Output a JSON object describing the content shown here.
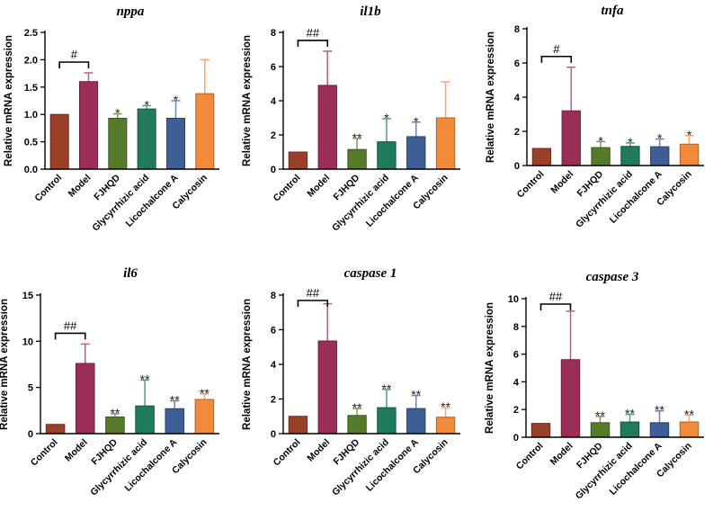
{
  "colors": {
    "Control": "#9a3f28",
    "Model": "#9b2d59",
    "FJHQD": "#557a2a",
    "Glycyrrhizic acid": "#1f7a5e",
    "Licochalcone A": "#3e5f96",
    "Calycosin": "#f28a3c"
  },
  "chart_data": [
    {
      "type": "bar",
      "title": "nppa",
      "ylabel": "Relative mRNA expression",
      "ylim": [
        0,
        2.5
      ],
      "yticks": [
        "0.0",
        "0.5",
        "1.0",
        "1.5",
        "2.0",
        "2.5"
      ],
      "categories": [
        "Control",
        "Model",
        "FJHQD",
        "Glycyrrhizic acid",
        "Licochalcone A",
        "Calycosin"
      ],
      "values": [
        1.0,
        1.6,
        0.93,
        1.1,
        0.93,
        1.38
      ],
      "errors": [
        0,
        0.16,
        0.08,
        0.06,
        0.32,
        0.62
      ],
      "annotations": [
        "",
        "",
        "*",
        "*",
        "*",
        ""
      ],
      "bracket_label": "#"
    },
    {
      "type": "bar",
      "title": "il1b",
      "ylabel": "Relative mRNA expression",
      "ylim": [
        0,
        8
      ],
      "yticks": [
        "0",
        "2",
        "4",
        "6",
        "8"
      ],
      "categories": [
        "Control",
        "Model",
        "FJHQD",
        "Glycyrrhizic acid",
        "Licochalcone A",
        "Calycosin"
      ],
      "values": [
        1.0,
        4.9,
        1.15,
        1.6,
        1.9,
        3.0
      ],
      "errors": [
        0,
        2.0,
        0.65,
        1.35,
        0.85,
        2.1
      ],
      "annotations": [
        "",
        "",
        "**",
        "*",
        "*",
        ""
      ],
      "bracket_label": "##"
    },
    {
      "type": "bar",
      "title": "tnfa",
      "ylabel": "Relative mRNA expression",
      "ylim": [
        0,
        8
      ],
      "yticks": [
        "0",
        "2",
        "4",
        "6",
        "8"
      ],
      "categories": [
        "Control",
        "Model",
        "FJHQD",
        "Glycyrrhizic acid",
        "Licochalcone A",
        "Calycosin"
      ],
      "values": [
        1.0,
        3.2,
        1.05,
        1.12,
        1.1,
        1.25
      ],
      "errors": [
        0,
        2.55,
        0.35,
        0.2,
        0.45,
        0.5
      ],
      "annotations": [
        "",
        "",
        "*",
        "*",
        "*",
        "*"
      ],
      "bracket_label": "#"
    },
    {
      "type": "bar",
      "title": "il6",
      "ylabel": "Relative mRNA expression",
      "ylim": [
        0,
        15
      ],
      "yticks": [
        "0",
        "5",
        "10",
        "15"
      ],
      "categories": [
        "Control",
        "Model",
        "FJHQD",
        "Glycyrrhizic acid",
        "Licochalcone A",
        "Calycosin"
      ],
      "values": [
        1.0,
        7.6,
        1.8,
        3.0,
        2.7,
        3.7
      ],
      "errors": [
        0,
        2.1,
        0.35,
        2.8,
        0.85,
        0.6
      ],
      "annotations": [
        "",
        "",
        "**",
        "**",
        "**",
        "**"
      ],
      "bracket_label": "##"
    },
    {
      "type": "bar",
      "title": "caspase 1",
      "ylabel": "Relative mRNA expression",
      "ylim": [
        0,
        8
      ],
      "yticks": [
        "0",
        "2",
        "4",
        "6",
        "8"
      ],
      "categories": [
        "Control",
        "Model",
        "FJHQD",
        "Glycyrrhizic acid",
        "Licochalcone A",
        "Calycosin"
      ],
      "values": [
        1.0,
        5.35,
        1.05,
        1.5,
        1.45,
        0.95
      ],
      "errors": [
        0,
        2.15,
        0.4,
        1.05,
        0.75,
        0.55
      ],
      "annotations": [
        "",
        "",
        "**",
        "**",
        "**",
        "**"
      ],
      "bracket_label": "##"
    },
    {
      "type": "bar",
      "title": "caspase 3",
      "ylabel": "Relative mRNA expression",
      "ylim": [
        0,
        10
      ],
      "yticks": [
        "0",
        "2",
        "4",
        "6",
        "8",
        "10"
      ],
      "categories": [
        "Control",
        "Model",
        "FJHQD",
        "Glycyrrhizic acid",
        "Licochalcone A",
        "Calycosin"
      ],
      "values": [
        1.0,
        5.6,
        1.05,
        1.1,
        1.05,
        1.1
      ],
      "errors": [
        0,
        3.5,
        0.45,
        0.55,
        0.85,
        0.5
      ],
      "annotations": [
        "",
        "",
        "**",
        "**",
        "**",
        "**"
      ],
      "bracket_label": "##"
    }
  ]
}
